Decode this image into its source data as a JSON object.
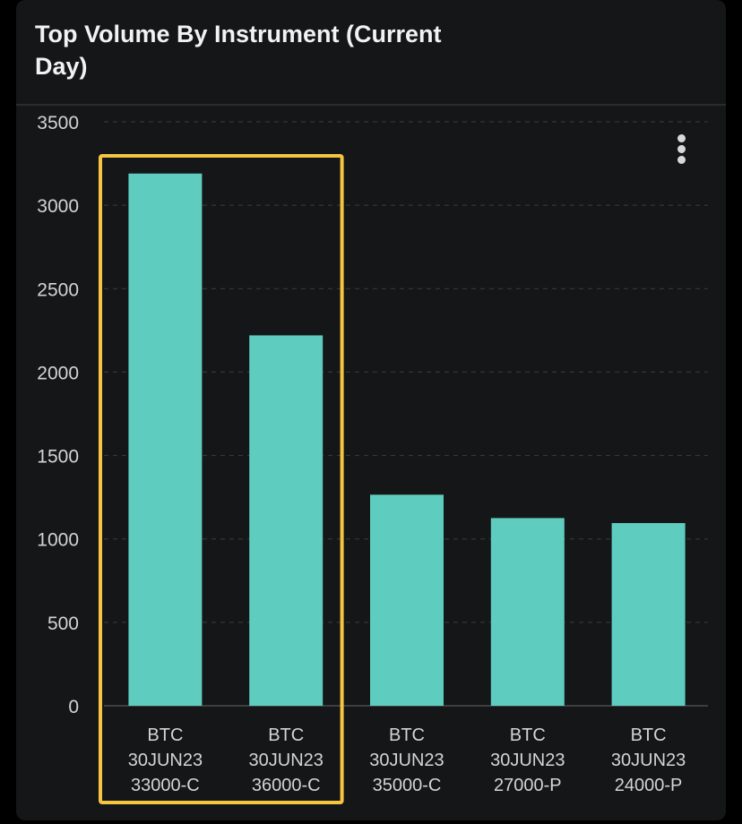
{
  "header": {
    "title": "Top Volume By Instrument (Current Day)"
  },
  "menu": {
    "icon": "more-vertical-icon"
  },
  "colors": {
    "background": "#151617",
    "bar": "#5ecdbf",
    "highlight": "#f5c542",
    "axis_text": "#d4d4d4",
    "grid": "#3a3c3e"
  },
  "chart_data": {
    "type": "bar",
    "title": "Top Volume By Instrument (Current Day)",
    "xlabel": "",
    "ylabel": "",
    "ylim": [
      0,
      3500
    ],
    "yticks": [
      "0",
      "500",
      "1000",
      "1500",
      "2000",
      "2500",
      "3000",
      "3500"
    ],
    "categories": [
      [
        "BTC",
        "30JUN23",
        "33000-C"
      ],
      [
        "BTC",
        "30JUN23",
        "36000-C"
      ],
      [
        "BTC",
        "30JUN23",
        "35000-C"
      ],
      [
        "BTC",
        "30JUN23",
        "27000-P"
      ],
      [
        "BTC",
        "30JUN23",
        "24000-P"
      ]
    ],
    "values": [
      3190,
      2220,
      1265,
      1125,
      1095
    ],
    "grid": true,
    "highlighted": [
      0,
      1
    ]
  }
}
